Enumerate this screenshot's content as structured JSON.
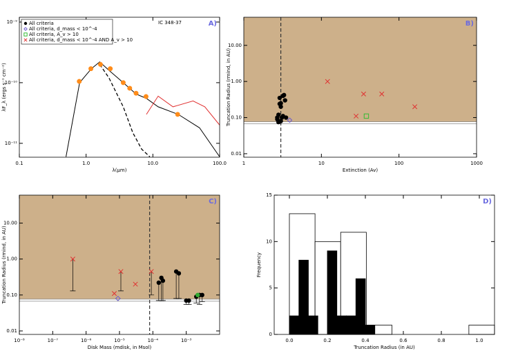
{
  "chart_data": [
    {
      "type": "line",
      "label": "A)",
      "annotation": "IC 348-37",
      "xlabel": "λ(μm)",
      "ylabel": "λF_λ (ergs s⁻¹ cm⁻²)",
      "xlog": true,
      "ylog": true,
      "xlim": [
        0.1,
        100
      ],
      "ylim": [
        5.9e-12,
        1.2e-09
      ],
      "xticks": [
        0.1,
        {
          "value": 1,
          "label": "1.0"
        },
        {
          "value": 10,
          "label": "10.0"
        },
        {
          "value": 100,
          "label": "100.0"
        }
      ],
      "yticks": [
        {
          "value": 1e-09,
          "label": "10⁻⁹"
        },
        {
          "value": 1e-10,
          "label": "10⁻¹⁰"
        },
        {
          "value": 1e-11,
          "label": "10⁻¹¹"
        }
      ],
      "legend": [
        {
          "label": "All criteria",
          "marker": "circle",
          "color": "#000000"
        },
        {
          "label": "All criteria, d_mass < 10^-4",
          "marker": "diamond",
          "color": "#6a5acd"
        },
        {
          "label": "All criteria, A_v > 10",
          "marker": "square",
          "color": "#33bb33"
        },
        {
          "label": "All criteria, d_mass < 10^-4 AND A_v > 10",
          "marker": "x",
          "color": "#e03030"
        }
      ],
      "series": [
        {
          "color": "#000000",
          "x": [
            0.5,
            0.8,
            1.2,
            1.6,
            2.2,
            3.6,
            5.6,
            8,
            12,
            24,
            50,
            100
          ],
          "values": [
            6e-12,
            1e-10,
            1.7e-10,
            2.2e-10,
            1.6e-10,
            1e-10,
            6.5e-11,
            5.5e-11,
            4e-11,
            3e-11,
            1.8e-11,
            6e-12
          ]
        },
        {
          "color": "#e03030",
          "x": [
            8,
            12,
            20,
            40,
            60,
            100
          ],
          "values": [
            3e-11,
            6e-11,
            4e-11,
            5e-11,
            4e-11,
            2e-11
          ]
        },
        {
          "color": "#000000",
          "dash": true,
          "x": [
            1.6,
            2.2,
            3.6,
            5,
            6.8,
            9
          ],
          "values": [
            2e-10,
            1.2e-10,
            4e-11,
            1.5e-11,
            8e-12,
            6e-12
          ]
        },
        {
          "color": "#ff8c1a",
          "marker": "circle",
          "x": [
            0.79,
            1.18,
            1.64,
            2.3,
            3.6,
            4.5,
            5.6,
            7.9,
            23.5
          ],
          "values": [
            1.05e-10,
            1.7e-10,
            2e-10,
            1.7e-10,
            1e-10,
            8.1e-11,
            6.7e-11,
            5.9e-11,
            3e-11
          ]
        }
      ]
    },
    {
      "type": "scatter",
      "label": "B)",
      "xlabel": "Extinction (Av)",
      "ylabel": "Truncation Radius (rmind, in AU)",
      "xlog": true,
      "ylog": true,
      "xlim": [
        1,
        1000
      ],
      "ylim": [
        0.008,
        60
      ],
      "xticks": [
        1,
        10,
        100,
        1000
      ],
      "yticks": [
        {
          "value": 10,
          "label": "10.00"
        },
        {
          "value": 1,
          "label": "1.00"
        },
        {
          "value": 0.1,
          "label": "0.10"
        },
        {
          "value": 0.01,
          "label": "0.01"
        }
      ],
      "vline": 3,
      "hline": 0.07,
      "shade": "#cdb08a",
      "series": [
        {
          "marker": "circle",
          "color": "#000000",
          "x": [
            2.7,
            2.8,
            2.9,
            3.0,
            3.1,
            3.2,
            3.3,
            3.4,
            2.8,
            3.0,
            3.2,
            2.9,
            3.5,
            2.7,
            3.0
          ],
          "values": [
            0.1,
            0.12,
            0.24,
            0.25,
            0.1,
            0.4,
            0.42,
            0.3,
            0.075,
            0.08,
            0.11,
            0.35,
            0.1,
            0.09,
            0.2
          ]
        },
        {
          "marker": "x",
          "color": "#e03030",
          "x": [
            12,
            35,
            60,
            28,
            160
          ],
          "values": [
            1.0,
            0.45,
            0.45,
            0.11,
            0.2
          ]
        },
        {
          "marker": "square",
          "color": "#33bb33",
          "x": [
            38
          ],
          "values": [
            0.11
          ]
        },
        {
          "marker": "diamond",
          "color": "#6a5acd",
          "x": [
            3.9
          ],
          "values": [
            0.085
          ]
        }
      ]
    },
    {
      "type": "scatter",
      "label": "C)",
      "xlabel": "Disk Mass (mdisk, in Msol)",
      "ylabel": "Truncation Radius (rmind, in AU)",
      "xlog": true,
      "ylog": true,
      "xlim": [
        1e-08,
        0.01
      ],
      "ylim": [
        0.008,
        60
      ],
      "xticks": [
        {
          "value": 1e-08,
          "label": "10⁻⁸"
        },
        {
          "value": 1e-07,
          "label": "10⁻⁷"
        },
        {
          "value": 1e-06,
          "label": "10⁻⁶"
        },
        {
          "value": 1e-05,
          "label": "10⁻⁵"
        },
        {
          "value": 0.0001,
          "label": "10⁻⁴"
        },
        {
          "value": 0.001,
          "label": "10⁻³"
        }
      ],
      "yticks": [
        {
          "value": 10,
          "label": "10.00"
        },
        {
          "value": 1,
          "label": "1.00"
        },
        {
          "value": 0.1,
          "label": "0.10"
        },
        {
          "value": 0.01,
          "label": "0.01"
        }
      ],
      "vline": 8e-05,
      "hline": 0.07,
      "shade": "#cdb08a",
      "series": [
        {
          "marker": "x",
          "color": "#e03030",
          "x": [
            4e-07,
            7e-06,
            1.1e-05,
            3e-05,
            9e-05
          ],
          "values": [
            1.0,
            0.11,
            0.45,
            0.2,
            0.45
          ],
          "low": [
            0.13,
            null,
            0.13,
            null,
            0.1
          ]
        },
        {
          "marker": "circle",
          "color": "#000000",
          "x": [
            0.00015,
            0.00018,
            0.0002,
            0.0005,
            0.0006,
            0.001,
            0.0012,
            0.002,
            0.0025,
            0.003
          ],
          "values": [
            0.22,
            0.3,
            0.25,
            0.45,
            0.4,
            0.07,
            0.07,
            0.09,
            0.1,
            0.1
          ],
          "low": [
            0.07,
            0.07,
            0.07,
            0.08,
            0.08,
            0.055,
            0.055,
            0.06,
            0.055,
            0.065
          ]
        },
        {
          "marker": "circle",
          "color": "#33aa33",
          "x": [
            0.0022
          ],
          "values": [
            0.1
          ]
        },
        {
          "marker": "diamond",
          "color": "#6a5acd",
          "x": [
            9e-06
          ],
          "values": [
            0.08
          ]
        }
      ]
    },
    {
      "type": "histogram",
      "label": "D)",
      "xlabel": "Truncation Radius (in AU)",
      "ylabel": "Frequency",
      "xlim": [
        -0.08,
        1.08
      ],
      "ylim": [
        0,
        15
      ],
      "xticks": [
        {
          "value": 0,
          "label": "0.0"
        },
        0.2,
        0.4,
        0.6,
        0.8,
        {
          "value": 1,
          "label": "1.0"
        }
      ],
      "yticks": [
        0,
        5,
        10,
        15
      ],
      "series": [
        {
          "color": "#ffffff",
          "stroke": "#000000",
          "bins": [
            0,
            0.135,
            0.27,
            0.405,
            0.54,
            0.675,
            0.81,
            0.945,
            1.08
          ],
          "values": [
            13,
            10,
            11,
            1,
            0,
            0,
            0,
            1
          ]
        },
        {
          "color": "#000000",
          "stroke": "#000000",
          "bins": [
            0,
            0.05,
            0.1,
            0.15,
            0.2,
            0.25,
            0.3,
            0.35,
            0.4,
            0.45,
            0.5
          ],
          "values": [
            2,
            8,
            2,
            0,
            9,
            2,
            2,
            6,
            1,
            0
          ]
        }
      ]
    }
  ]
}
